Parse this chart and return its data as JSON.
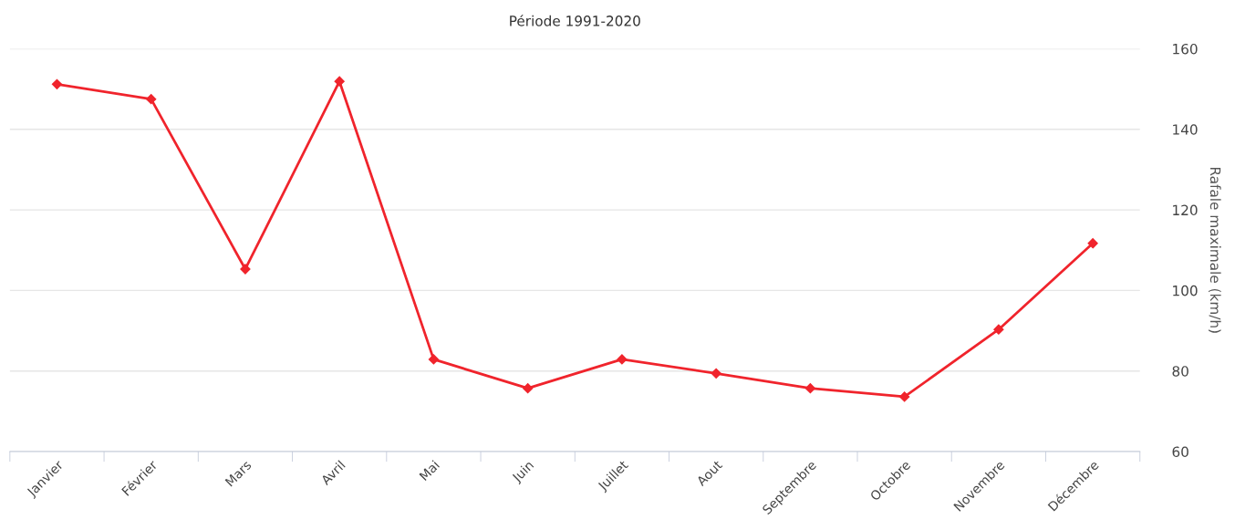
{
  "chart_data": {
    "type": "line",
    "title": "Période 1991-2020",
    "ylabel": "Rafale maximale (km/h)",
    "categories": [
      "Janvier",
      "Février",
      "Mars",
      "Avril",
      "Mai",
      "Juin",
      "Juillet",
      "Aout",
      "Septembre",
      "Octobre",
      "Novembre",
      "Décembre"
    ],
    "series": [
      {
        "color": "#f0242c",
        "values": [
          151.2,
          147.5,
          105.3,
          151.9,
          82.9,
          75.7,
          82.9,
          79.4,
          75.7,
          73.6,
          90.3,
          111.7
        ]
      }
    ],
    "ylim": [
      60,
      160
    ],
    "yticks": [
      60,
      80,
      100,
      120,
      140,
      160
    ],
    "grid": "y",
    "marker": "diamond",
    "line_style": "solid",
    "legend": false
  }
}
